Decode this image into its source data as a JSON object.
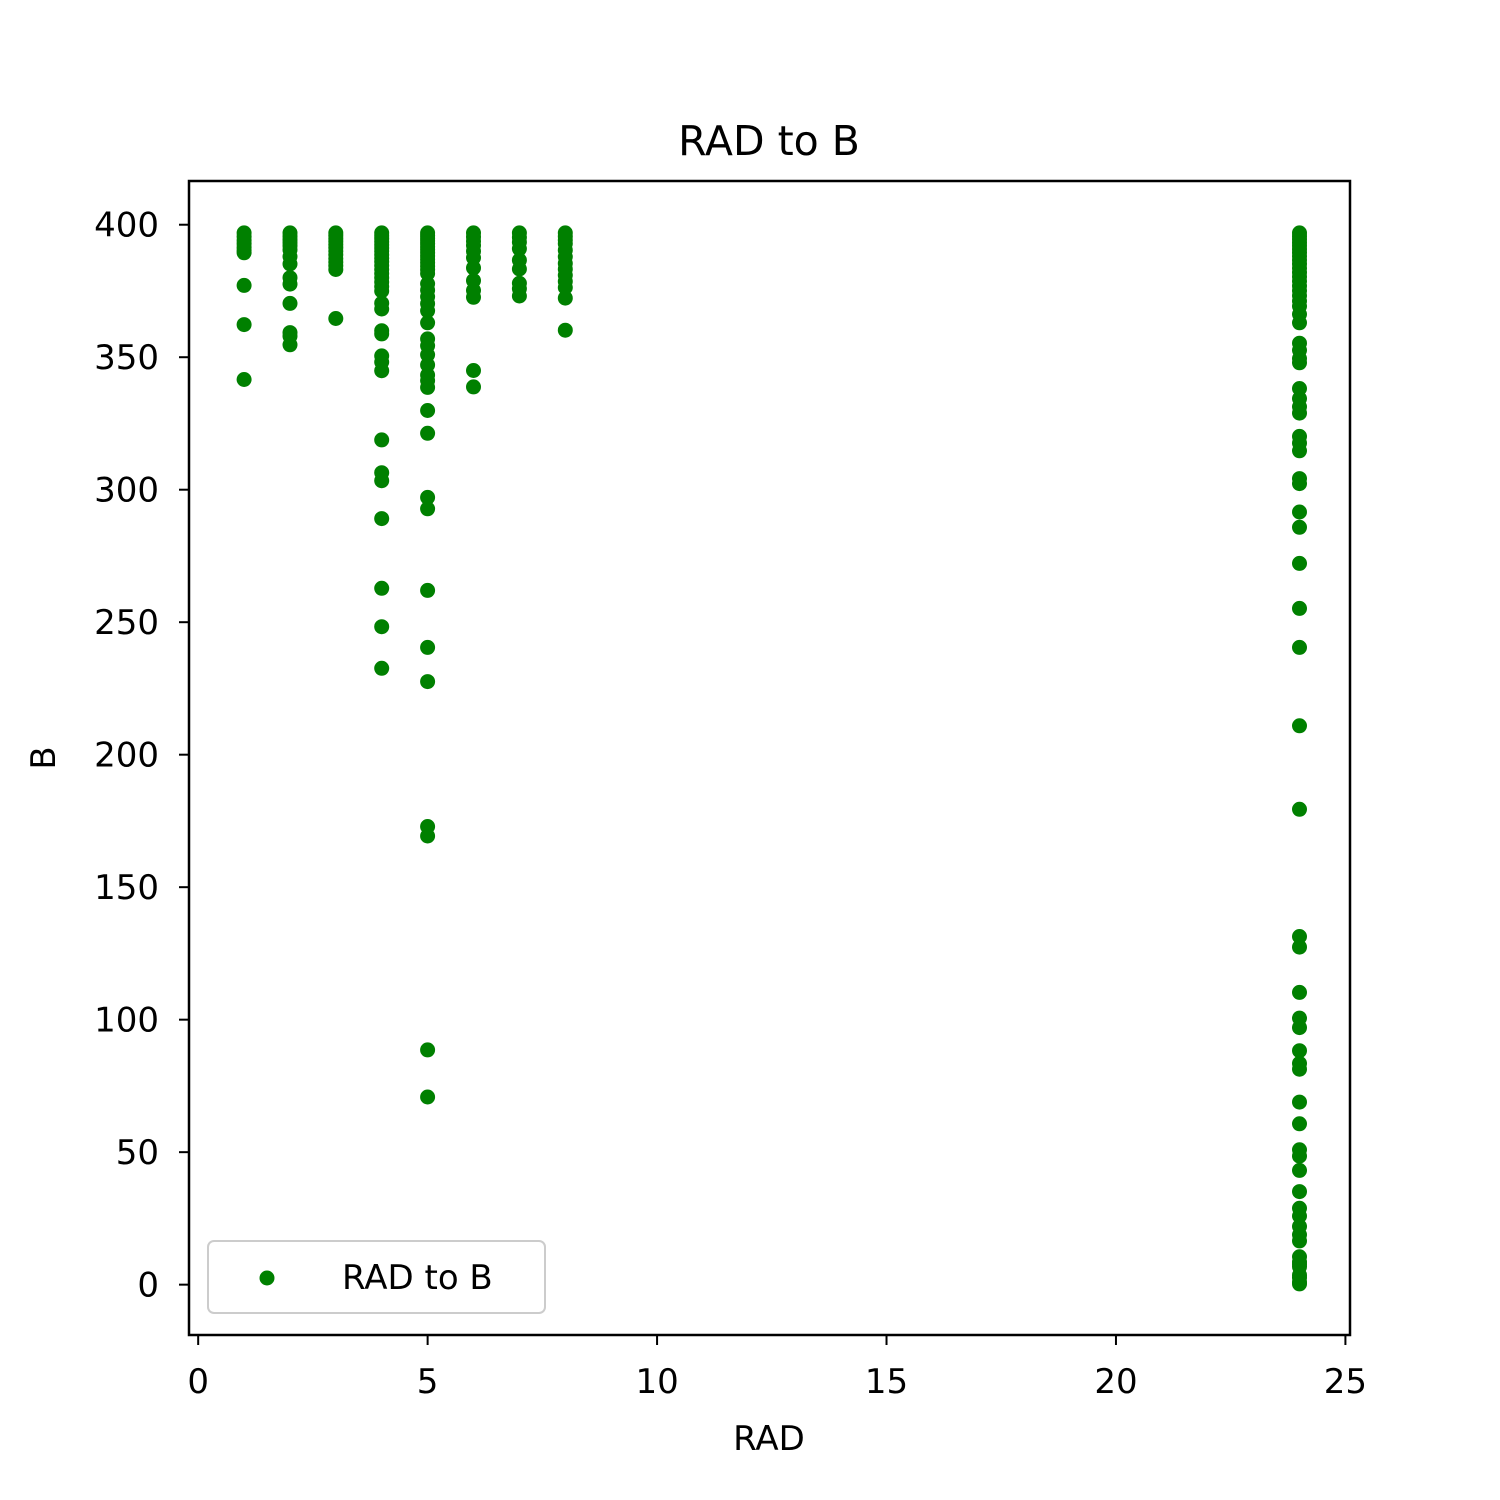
{
  "chart_data": {
    "type": "scatter",
    "title": "RAD to B",
    "xlabel": "RAD",
    "ylabel": "B",
    "xlim": [
      -0.2,
      25.1
    ],
    "ylim": [
      -19.0,
      416.5
    ],
    "xticks": [
      0,
      5,
      10,
      15,
      20,
      25
    ],
    "yticks": [
      0,
      50,
      100,
      150,
      200,
      250,
      300,
      350,
      400
    ],
    "grid": false,
    "legend": {
      "position": "lower left",
      "entries": [
        "RAD to B"
      ]
    },
    "series": [
      {
        "name": "RAD to B",
        "color": "#008000",
        "points": [
          [
            1,
            396.9
          ],
          [
            1,
            395.5
          ],
          [
            1,
            394.1
          ],
          [
            1,
            392.8
          ],
          [
            1,
            391.5
          ],
          [
            1,
            390.4
          ],
          [
            1,
            389.4
          ],
          [
            1,
            377.1
          ],
          [
            1,
            362.3
          ],
          [
            1,
            341.6
          ],
          [
            2,
            396.9
          ],
          [
            2,
            395.6
          ],
          [
            2,
            394.3
          ],
          [
            2,
            393.2
          ],
          [
            2,
            392.0
          ],
          [
            2,
            390.5
          ],
          [
            2,
            388.0
          ],
          [
            2,
            385.2
          ],
          [
            2,
            380.0
          ],
          [
            2,
            377.6
          ],
          [
            2,
            370.3
          ],
          [
            2,
            359.3
          ],
          [
            2,
            357.9
          ],
          [
            2,
            354.7
          ],
          [
            3,
            396.9
          ],
          [
            3,
            395.9
          ],
          [
            3,
            394.8
          ],
          [
            3,
            393.7
          ],
          [
            3,
            392.5
          ],
          [
            3,
            391.3
          ],
          [
            3,
            390.0
          ],
          [
            3,
            388.7
          ],
          [
            3,
            387.3
          ],
          [
            3,
            385.9
          ],
          [
            3,
            384.5
          ],
          [
            3,
            383.1
          ],
          [
            3,
            364.6
          ],
          [
            4,
            396.9
          ],
          [
            4,
            395.8
          ],
          [
            4,
            394.7
          ],
          [
            4,
            393.6
          ],
          [
            4,
            392.4
          ],
          [
            4,
            391.2
          ],
          [
            4,
            390.0
          ],
          [
            4,
            388.7
          ],
          [
            4,
            387.4
          ],
          [
            4,
            386.0
          ],
          [
            4,
            384.6
          ],
          [
            4,
            383.1
          ],
          [
            4,
            381.6
          ],
          [
            4,
            380.0
          ],
          [
            4,
            378.4
          ],
          [
            4,
            376.7
          ],
          [
            4,
            375.0
          ],
          [
            4,
            370.4
          ],
          [
            4,
            368.2
          ],
          [
            4,
            360.0
          ],
          [
            4,
            358.8
          ],
          [
            4,
            350.5
          ],
          [
            4,
            348.2
          ],
          [
            4,
            344.9
          ],
          [
            4,
            318.8
          ],
          [
            4,
            306.4
          ],
          [
            4,
            303.4
          ],
          [
            4,
            289.1
          ],
          [
            4,
            262.8
          ],
          [
            4,
            248.3
          ],
          [
            4,
            232.6
          ],
          [
            5,
            396.9
          ],
          [
            5,
            395.9
          ],
          [
            5,
            394.9
          ],
          [
            5,
            393.9
          ],
          [
            5,
            392.8
          ],
          [
            5,
            391.7
          ],
          [
            5,
            390.6
          ],
          [
            5,
            389.4
          ],
          [
            5,
            388.2
          ],
          [
            5,
            387.0
          ],
          [
            5,
            385.7
          ],
          [
            5,
            384.4
          ],
          [
            5,
            383.0
          ],
          [
            5,
            381.6
          ],
          [
            5,
            377.7
          ],
          [
            5,
            375.3
          ],
          [
            5,
            372.8
          ],
          [
            5,
            370.2
          ],
          [
            5,
            367.5
          ],
          [
            5,
            363.0
          ],
          [
            5,
            356.9
          ],
          [
            5,
            354.3
          ],
          [
            5,
            350.9
          ],
          [
            5,
            347.1
          ],
          [
            5,
            343.3
          ],
          [
            5,
            341.2
          ],
          [
            5,
            338.6
          ],
          [
            5,
            329.9
          ],
          [
            5,
            321.3
          ],
          [
            5,
            297.1
          ],
          [
            5,
            292.8
          ],
          [
            5,
            262.0
          ],
          [
            5,
            240.5
          ],
          [
            5,
            227.6
          ],
          [
            5,
            172.9
          ],
          [
            5,
            169.3
          ],
          [
            5,
            88.6
          ],
          [
            5,
            70.8
          ],
          [
            6,
            396.9
          ],
          [
            6,
            395.4
          ],
          [
            6,
            393.8
          ],
          [
            6,
            392.2
          ],
          [
            6,
            390.0
          ],
          [
            6,
            387.5
          ],
          [
            6,
            383.7
          ],
          [
            6,
            378.9
          ],
          [
            6,
            375.2
          ],
          [
            6,
            372.6
          ],
          [
            6,
            345.0
          ],
          [
            6,
            338.8
          ],
          [
            7,
            396.9
          ],
          [
            7,
            395.2
          ],
          [
            7,
            393.4
          ],
          [
            7,
            390.9
          ],
          [
            7,
            386.6
          ],
          [
            7,
            383.3
          ],
          [
            7,
            377.9
          ],
          [
            7,
            375.8
          ],
          [
            7,
            373.1
          ],
          [
            8,
            396.9
          ],
          [
            8,
            395.6
          ],
          [
            8,
            394.2
          ],
          [
            8,
            392.8
          ],
          [
            8,
            390.4
          ],
          [
            8,
            387.9
          ],
          [
            8,
            385.4
          ],
          [
            8,
            383.2
          ],
          [
            8,
            380.9
          ],
          [
            8,
            378.6
          ],
          [
            8,
            376.3
          ],
          [
            8,
            372.3
          ],
          [
            8,
            360.2
          ],
          [
            24,
            396.9
          ],
          [
            24,
            395.7
          ],
          [
            24,
            394.5
          ],
          [
            24,
            393.3
          ],
          [
            24,
            392.1
          ],
          [
            24,
            390.8
          ],
          [
            24,
            389.5
          ],
          [
            24,
            388.1
          ],
          [
            24,
            386.7
          ],
          [
            24,
            385.2
          ],
          [
            24,
            383.6
          ],
          [
            24,
            382.0
          ],
          [
            24,
            380.4
          ],
          [
            24,
            378.7
          ],
          [
            24,
            376.9
          ],
          [
            24,
            375.1
          ],
          [
            24,
            373.2
          ],
          [
            24,
            371.2
          ],
          [
            24,
            369.2
          ],
          [
            24,
            366.2
          ],
          [
            24,
            363.0
          ],
          [
            24,
            355.3
          ],
          [
            24,
            352.6
          ],
          [
            24,
            349.5
          ],
          [
            24,
            347.9
          ],
          [
            24,
            338.2
          ],
          [
            24,
            334.4
          ],
          [
            24,
            331.3
          ],
          [
            24,
            328.9
          ],
          [
            24,
            320.1
          ],
          [
            24,
            317.6
          ],
          [
            24,
            314.7
          ],
          [
            24,
            304.2
          ],
          [
            24,
            302.3
          ],
          [
            24,
            291.6
          ],
          [
            24,
            285.8
          ],
          [
            24,
            272.2
          ],
          [
            24,
            255.2
          ],
          [
            24,
            240.5
          ],
          [
            24,
            210.9
          ],
          [
            24,
            179.4
          ],
          [
            24,
            131.4
          ],
          [
            24,
            127.4
          ],
          [
            24,
            110.3
          ],
          [
            24,
            100.6
          ],
          [
            24,
            97.0
          ],
          [
            24,
            88.3
          ],
          [
            24,
            83.5
          ],
          [
            24,
            81.3
          ],
          [
            24,
            68.9
          ],
          [
            24,
            60.7
          ],
          [
            24,
            50.9
          ],
          [
            24,
            48.5
          ],
          [
            24,
            43.1
          ],
          [
            24,
            35.1
          ],
          [
            24,
            28.8
          ],
          [
            24,
            25.9
          ],
          [
            24,
            22.0
          ],
          [
            24,
            18.8
          ],
          [
            24,
            16.5
          ],
          [
            24,
            10.5
          ],
          [
            24,
            8.6
          ],
          [
            24,
            7.7
          ],
          [
            24,
            6.7
          ],
          [
            24,
            3.6
          ],
          [
            24,
            2.6
          ],
          [
            24,
            1.0
          ],
          [
            24,
            0.3
          ]
        ]
      }
    ]
  }
}
